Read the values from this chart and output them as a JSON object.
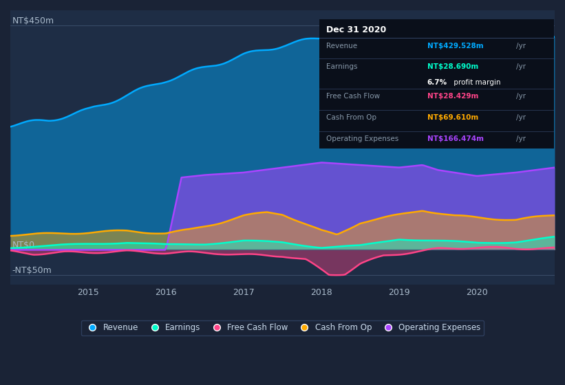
{
  "bg_color": "#1a2336",
  "plot_bg_color": "#1e2d45",
  "colors": {
    "revenue": "#00aaff",
    "earnings": "#00ffcc",
    "free_cash_flow": "#ff4488",
    "cash_from_op": "#ffaa00",
    "operating_expenses": "#aa44ff"
  },
  "x_ticks": [
    2015,
    2016,
    2017,
    2018,
    2019,
    2020
  ],
  "ylim": [
    -70,
    480
  ],
  "ylabel_top": "NT$450m",
  "ylabel_zero": "NT$0",
  "ylabel_neg": "-NT$50m",
  "tooltip": {
    "date": "Dec 31 2020",
    "revenue_label": "Revenue",
    "revenue_value": "NT$429.528m",
    "earnings_label": "Earnings",
    "earnings_value": "NT$28.690m",
    "margin_value": "6.7% profit margin",
    "fcf_label": "Free Cash Flow",
    "fcf_value": "NT$28.429m",
    "cfop_label": "Cash From Op",
    "cfop_value": "NT$69.610m",
    "opex_label": "Operating Expenses",
    "opex_value": "NT$166.474m"
  },
  "legend_labels": [
    "Revenue",
    "Earnings",
    "Free Cash Flow",
    "Cash From Op",
    "Operating Expenses"
  ]
}
